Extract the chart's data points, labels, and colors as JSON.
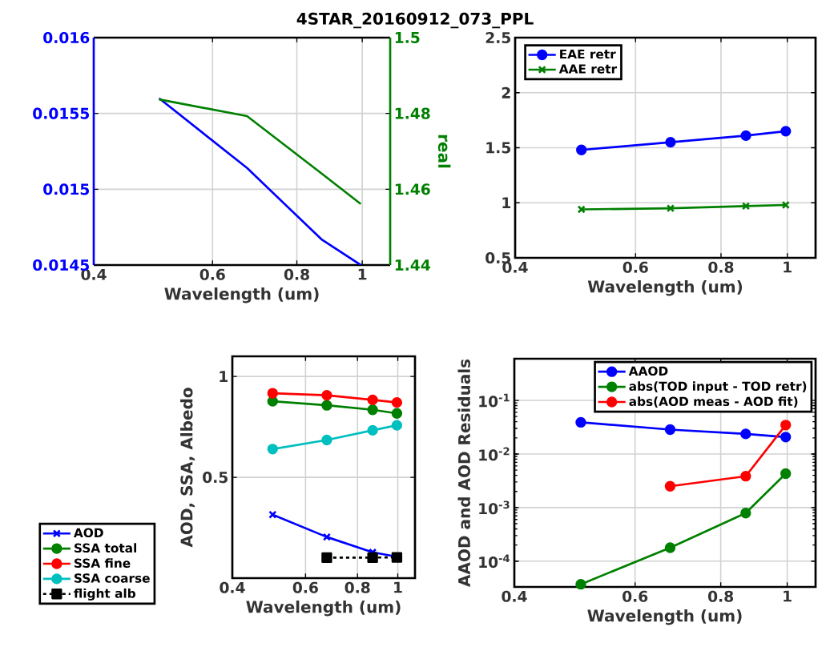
{
  "chart_data": [
    {
      "type": "line",
      "title": "4STAR_20160912_073_PPL",
      "xlabel": "Wavelength (um)",
      "y2label": "real",
      "log": "x",
      "grid": true,
      "marker": "none",
      "x": [
        0.5,
        0.675,
        0.87,
        0.995
      ],
      "xlim": [
        0.4,
        1.1
      ],
      "xticks": [
        0.4,
        0.6,
        0.8,
        1
      ],
      "ylim": [
        0.0145,
        0.016
      ],
      "yticks": [
        0.0145,
        0.015,
        0.0155,
        0.016
      ],
      "y2lim": [
        1.44,
        1.5
      ],
      "y2ticks": [
        1.44,
        1.46,
        1.48,
        1.5
      ],
      "series": [
        {
          "color": "#0000ff",
          "values": [
            0.0156,
            0.01514,
            0.01467,
            0.0145
          ]
        },
        {
          "color": "#008000",
          "axis": "y2",
          "values": [
            1.4837,
            1.4793,
            1.4642,
            1.4561
          ]
        }
      ]
    },
    {
      "type": "line",
      "xlabel": "Wavelength (um)",
      "log": "x",
      "grid": true,
      "legend": "top left",
      "x": [
        0.5,
        0.675,
        0.87,
        0.995
      ],
      "xlim": [
        0.4,
        1.1
      ],
      "xticks": [
        0.4,
        0.6,
        0.8,
        1
      ],
      "ylim": [
        0.5,
        2.5
      ],
      "yticks": [
        0.5,
        1,
        1.5,
        2,
        2.5
      ],
      "series": [
        {
          "name": "EAE retr",
          "color": "#0000ff",
          "marker": "circle",
          "values": [
            1.48,
            1.55,
            1.61,
            1.65
          ]
        },
        {
          "name": "AAE retr",
          "color": "#008000",
          "marker": "cross",
          "values": [
            0.94,
            0.95,
            0.97,
            0.98
          ]
        }
      ]
    },
    {
      "type": "line",
      "xlabel": "Wavelength (um)",
      "ylabel": "AOD, SSA, Albedo",
      "log": "x",
      "grid": true,
      "legend": "bottom left",
      "x": [
        0.5,
        0.675,
        0.87,
        0.995
      ],
      "xlim": [
        0.4,
        1.1
      ],
      "xticks": [
        0.4,
        0.6,
        0.8,
        1
      ],
      "ylim": [
        0,
        1.1
      ],
      "yticks": [
        0.5,
        1
      ],
      "series": [
        {
          "name": "AOD",
          "color": "#0000ff",
          "marker": "cross",
          "values": [
            0.315,
            0.204,
            0.128,
            0.106
          ]
        },
        {
          "name": "SSA total",
          "color": "#008000",
          "marker": "circle",
          "values": [
            0.877,
            0.857,
            0.835,
            0.817
          ]
        },
        {
          "name": "SSA fine",
          "color": "#ff0000",
          "marker": "circle",
          "values": [
            0.917,
            0.907,
            0.884,
            0.871
          ]
        },
        {
          "name": "SSA coarse",
          "color": "#00bfbf",
          "marker": "circle",
          "values": [
            0.64,
            0.685,
            0.733,
            0.758
          ]
        },
        {
          "name": "flight alb",
          "color": "#000000",
          "marker": "square",
          "line_style": "dashed",
          "values": [
            null,
            0.102,
            0.102,
            0.103
          ]
        }
      ]
    },
    {
      "type": "line",
      "xlabel": "Wavelength (um)",
      "ylabel": "AAOD and AOD Residuals",
      "log": "xy",
      "grid": true,
      "legend": "top right",
      "x": [
        0.5,
        0.675,
        0.87,
        0.995
      ],
      "xlim": [
        0.4,
        1.1
      ],
      "xticks": [
        0.4,
        0.6,
        0.8,
        1
      ],
      "ylim": [
        3.3e-05,
        0.6
      ],
      "yticks": [
        {
          "value": 0.0001,
          "label": "10$^{-4}$"
        },
        {
          "value": 0.001,
          "label": "10$^{-3}$"
        },
        {
          "value": 0.01,
          "label": "10$^{-2}$"
        },
        {
          "value": 0.1,
          "label": "10$^{-1}$"
        }
      ],
      "series": [
        {
          "name": "AAOD",
          "color": "#0000ff",
          "marker": "circle",
          "values": [
            0.039,
            0.0285,
            0.0237,
            0.0207
          ]
        },
        {
          "name": "abs(TOD input - TOD retr)",
          "color": "#008000",
          "marker": "circle",
          "values": [
            3.7e-05,
            0.000178,
            0.00079,
            0.0043
          ]
        },
        {
          "name": "abs(AOD meas - AOD fit)",
          "color": "#ff0000",
          "marker": "circle",
          "values": [
            null,
            0.0025,
            0.00385,
            0.0347
          ]
        }
      ]
    }
  ]
}
